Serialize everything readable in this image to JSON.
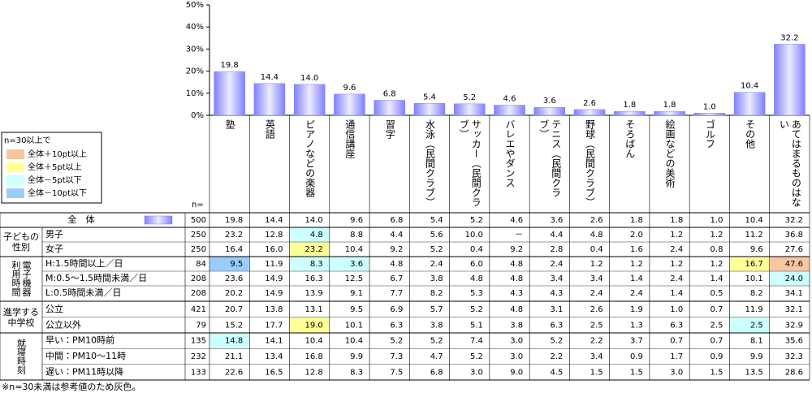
{
  "chart_data": {
    "type": "bar",
    "categories": [
      "塾",
      "英語",
      "ピアノなどの楽器",
      "通信講座",
      "習字",
      "水泳（民間クラブ）",
      "サッカー（民間クラブ）",
      "バレエやダンス",
      "テニス（民間クラブ）",
      "野球（民間クラブ）",
      "そろばん",
      "絵画などの美術",
      "ゴルフ",
      "その他",
      "あてはまるものはない"
    ],
    "values": [
      19.8,
      14.4,
      14.0,
      9.6,
      6.8,
      5.4,
      5.2,
      4.6,
      3.6,
      2.6,
      1.8,
      1.8,
      1.0,
      10.4,
      32.2
    ],
    "value_labels": [
      "19.8",
      "14.4",
      "14.0",
      "9.6",
      "6.8",
      "5.4",
      "5.2",
      "4.6",
      "3.6",
      "2.6",
      "1.8",
      "1.8",
      "1.0",
      "10.4",
      "32.2"
    ],
    "color": "#8080ff",
    "ylim": [
      0,
      50
    ],
    "yticks": [
      {
        "value": 0,
        "label": "0%"
      },
      {
        "value": 10,
        "label": "10%"
      },
      {
        "value": 20,
        "label": "20%"
      },
      {
        "value": 30,
        "label": "30%"
      },
      {
        "value": 40,
        "label": "40%"
      },
      {
        "value": 50,
        "label": "50%"
      }
    ]
  },
  "legend": {
    "title": "n=30以上で",
    "items": [
      {
        "label": "全体＋10pt以上",
        "color": "#f8c6a2"
      },
      {
        "label": "全体＋5pt以上",
        "color": "#ffff99"
      },
      {
        "label": "全体－5pt以下",
        "color": "#ccffff"
      },
      {
        "label": "全体－10pt以下",
        "color": "#99ccff"
      }
    ]
  },
  "n_label": "n=",
  "table": {
    "total": {
      "label": "全　体",
      "n": "500",
      "values": [
        "19.8",
        "14.4",
        "14.0",
        "9.6",
        "6.8",
        "5.4",
        "5.2",
        "4.6",
        "3.6",
        "2.6",
        "1.8",
        "1.8",
        "1.0",
        "10.4",
        "32.2"
      ]
    },
    "groups": [
      {
        "label": "子どもの性別",
        "rows": [
          {
            "label": "男子",
            "n": "250",
            "values": [
              "23.2",
              "12.8",
              "4.8",
              "8.8",
              "4.4",
              "5.6",
              "10.0",
              "－",
              "4.4",
              "4.8",
              "2.0",
              "1.2",
              "1.2",
              "11.2",
              "36.8"
            ],
            "highlights": [
              [
                2,
                2
              ]
            ]
          },
          {
            "label": "女子",
            "n": "250",
            "values": [
              "16.4",
              "16.0",
              "23.2",
              "10.4",
              "9.2",
              "5.2",
              "0.4",
              "9.2",
              "2.8",
              "0.4",
              "1.6",
              "2.4",
              "0.8",
              "9.6",
              "27.6"
            ],
            "highlights": [
              [
                2,
                1
              ]
            ]
          }
        ]
      },
      {
        "label": "電子機器利用時間",
        "rows": [
          {
            "label": "H:1.5時間以上／日",
            "n": "84",
            "values": [
              "9.5",
              "11.9",
              "8.3",
              "3.6",
              "4.8",
              "2.4",
              "6.0",
              "4.8",
              "2.4",
              "1.2",
              "1.2",
              "1.2",
              "1.2",
              "16.7",
              "47.6"
            ],
            "highlights": [
              [
                0,
                3
              ],
              [
                2,
                2
              ],
              [
                3,
                2
              ],
              [
                13,
                1
              ],
              [
                14,
                0
              ]
            ]
          },
          {
            "label": "M:0.5～1.5時間未満／日",
            "n": "208",
            "values": [
              "23.6",
              "14.9",
              "16.3",
              "12.5",
              "6.7",
              "3.8",
              "4.8",
              "4.8",
              "3.4",
              "3.4",
              "1.4",
              "2.4",
              "1.4",
              "10.1",
              "24.0"
            ],
            "highlights": [
              [
                14,
                2
              ]
            ]
          },
          {
            "label": "L:0.5時間未満／日",
            "n": "208",
            "values": [
              "20.2",
              "14.9",
              "13.9",
              "9.1",
              "7.7",
              "8.2",
              "5.3",
              "4.3",
              "4.3",
              "2.4",
              "2.4",
              "1.4",
              "0.5",
              "8.2",
              "34.1"
            ],
            "highlights": []
          }
        ]
      },
      {
        "label": "進学する中学校",
        "rows": [
          {
            "label": "公立",
            "n": "421",
            "values": [
              "20.7",
              "13.8",
              "13.1",
              "9.5",
              "6.9",
              "5.7",
              "5.2",
              "4.8",
              "3.1",
              "2.6",
              "1.9",
              "1.0",
              "0.7",
              "11.9",
              "32.1"
            ],
            "highlights": []
          },
          {
            "label": "公立以外",
            "n": "79",
            "values": [
              "15.2",
              "17.7",
              "19.0",
              "10.1",
              "6.3",
              "3.8",
              "5.1",
              "3.8",
              "6.3",
              "2.5",
              "1.3",
              "6.3",
              "2.5",
              "2.5",
              "32.9"
            ],
            "highlights": [
              [
                2,
                1
              ],
              [
                13,
                2
              ]
            ]
          }
        ]
      },
      {
        "label": "就寝時刻",
        "rows": [
          {
            "label": "早い：PM10時前",
            "n": "135",
            "values": [
              "14.8",
              "14.1",
              "10.4",
              "10.4",
              "5.2",
              "5.2",
              "7.4",
              "3.0",
              "5.2",
              "2.2",
              "3.7",
              "0.7",
              "0.7",
              "8.1",
              "35.6"
            ],
            "highlights": [
              [
                0,
                2
              ]
            ]
          },
          {
            "label": "中間：PM10～11時",
            "n": "232",
            "values": [
              "21.1",
              "13.4",
              "16.8",
              "9.9",
              "7.3",
              "4.7",
              "5.2",
              "3.0",
              "2.2",
              "3.4",
              "0.9",
              "1.7",
              "0.9",
              "9.9",
              "32.3"
            ],
            "highlights": []
          },
          {
            "label": "遅い：PM11時以降",
            "n": "133",
            "values": [
              "22.6",
              "16.5",
              "12.8",
              "8.3",
              "7.5",
              "6.8",
              "3.0",
              "9.0",
              "4.5",
              "1.5",
              "1.5",
              "3.0",
              "1.5",
              "13.5",
              "28.6"
            ],
            "highlights": []
          }
        ]
      }
    ]
  },
  "footnote": "※n=30未満は参考値のため灰色。"
}
